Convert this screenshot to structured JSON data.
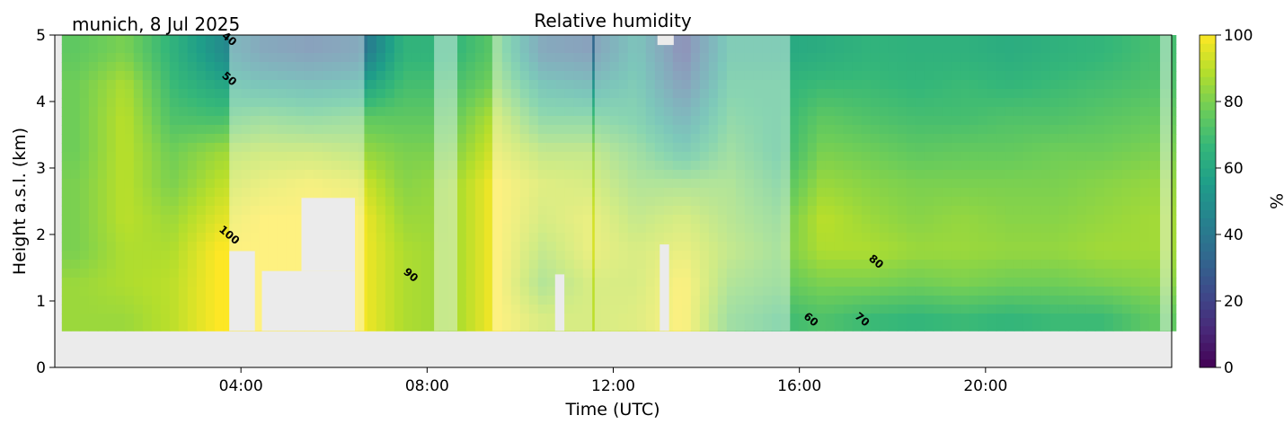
{
  "chart_data": {
    "type": "heatmap",
    "title": "Relative humidity",
    "subtitle": "munich, 8 Jul 2025",
    "xlabel": "Time (UTC)",
    "ylabel": "Height a.s.l. (km)",
    "xlim_hours": [
      0,
      24
    ],
    "ylim": [
      0,
      5
    ],
    "x_ticks": [
      {
        "v": 4,
        "label": "04:00"
      },
      {
        "v": 8,
        "label": "08:00"
      },
      {
        "v": 12,
        "label": "12:00"
      },
      {
        "v": 16,
        "label": "16:00"
      },
      {
        "v": 20,
        "label": "20:00"
      }
    ],
    "y_ticks": [
      {
        "v": 0,
        "label": "0"
      },
      {
        "v": 1,
        "label": "1"
      },
      {
        "v": 2,
        "label": "2"
      },
      {
        "v": 3,
        "label": "3"
      },
      {
        "v": 4,
        "label": "4"
      },
      {
        "v": 5,
        "label": "5"
      }
    ],
    "colorbar": {
      "label": "%",
      "range": [
        0,
        100
      ],
      "ticks": [
        {
          "v": 0,
          "label": "0"
        },
        {
          "v": 20,
          "label": "20"
        },
        {
          "v": 40,
          "label": "40"
        },
        {
          "v": 60,
          "label": "60"
        },
        {
          "v": 80,
          "label": "80"
        },
        {
          "v": 100,
          "label": "100"
        }
      ],
      "colormap": "viridis"
    },
    "data_base_height_km": 0.55,
    "heights_km": [
      0.75,
      1.25,
      1.75,
      2.25,
      2.75,
      3.25,
      3.75,
      4.25,
      4.75
    ],
    "times_hours": [
      0.5,
      1.5,
      2.5,
      3.5,
      4.5,
      5.5,
      6.5,
      7.5,
      8.5,
      9.5,
      10.5,
      11.5,
      12.5,
      13.5,
      14.5,
      15.5,
      16.5,
      17.5,
      18.5,
      19.5,
      20.5,
      21.5,
      22.5,
      23.5
    ],
    "rh_percent": [
      [
        85,
        85,
        80,
        80,
        80,
        78,
        78,
        78,
        75
      ],
      [
        85,
        88,
        88,
        90,
        90,
        90,
        90,
        88,
        80
      ],
      [
        90,
        90,
        88,
        85,
        80,
        78,
        72,
        68,
        65
      ],
      [
        100,
        100,
        100,
        95,
        90,
        85,
        70,
        60,
        50
      ],
      [
        100,
        100,
        100,
        100,
        95,
        88,
        75,
        55,
        35
      ],
      [
        100,
        100,
        100,
        100,
        98,
        88,
        72,
        52,
        30
      ],
      [
        100,
        100,
        100,
        100,
        95,
        85,
        75,
        55,
        35
      ],
      [
        88,
        88,
        88,
        85,
        82,
        80,
        75,
        70,
        65
      ],
      [
        85,
        85,
        85,
        85,
        85,
        80,
        75,
        70,
        65
      ],
      [
        100,
        100,
        100,
        100,
        100,
        95,
        90,
        80,
        75
      ],
      [
        90,
        80,
        85,
        90,
        92,
        85,
        70,
        55,
        35
      ],
      [
        90,
        90,
        95,
        95,
        90,
        85,
        70,
        50,
        30
      ],
      [
        92,
        90,
        90,
        85,
        80,
        75,
        65,
        60,
        55
      ],
      [
        100,
        100,
        95,
        90,
        80,
        60,
        45,
        30,
        20
      ],
      [
        75,
        80,
        85,
        82,
        80,
        75,
        70,
        65,
        60
      ],
      [
        68,
        75,
        78,
        75,
        70,
        65,
        65,
        65,
        60
      ],
      [
        72,
        80,
        88,
        90,
        85,
        80,
        75,
        68,
        62
      ],
      [
        68,
        80,
        88,
        85,
        82,
        78,
        72,
        68,
        65
      ],
      [
        66,
        78,
        85,
        82,
        80,
        75,
        70,
        66,
        64
      ],
      [
        68,
        80,
        85,
        84,
        80,
        76,
        70,
        68,
        64
      ],
      [
        66,
        78,
        84,
        82,
        80,
        76,
        72,
        66,
        62
      ],
      [
        68,
        78,
        84,
        82,
        80,
        78,
        72,
        68,
        64
      ],
      [
        68,
        80,
        86,
        84,
        82,
        78,
        74,
        70,
        66
      ],
      [
        75,
        82,
        86,
        86,
        84,
        80,
        76,
        72,
        70
      ]
    ],
    "low_confidence_intervals_hours": [
      [
        3.75,
        6.65
      ],
      [
        8.15,
        8.65
      ],
      [
        9.4,
        11.55
      ],
      [
        11.6,
        15.8
      ],
      [
        23.75,
        24
      ]
    ],
    "missing_regions": [
      {
        "t": [
          3.75,
          4.3
        ],
        "z": [
          0.55,
          1.75
        ]
      },
      {
        "t": [
          4.45,
          6.45
        ],
        "z": [
          0.55,
          1.45
        ]
      },
      {
        "t": [
          5.3,
          6.45
        ],
        "z": [
          1.45,
          2.55
        ]
      },
      {
        "t": [
          12.95,
          13.3
        ],
        "z": [
          4.85,
          5.0
        ]
      },
      {
        "t": [
          13.0,
          13.2
        ],
        "z": [
          0.55,
          1.85
        ]
      },
      {
        "t": [
          10.75,
          10.95
        ],
        "z": [
          0.55,
          1.4
        ]
      }
    ],
    "contour_labels": [
      {
        "text": "40",
        "t": 3.7,
        "z": 4.9
      },
      {
        "text": "50",
        "t": 3.7,
        "z": 4.3
      },
      {
        "text": "100",
        "t": 3.7,
        "z": 1.95
      },
      {
        "text": "90",
        "t": 7.6,
        "z": 1.35
      },
      {
        "text": "80",
        "t": 17.6,
        "z": 1.55
      },
      {
        "text": "60",
        "t": 16.2,
        "z": 0.68
      },
      {
        "text": "70",
        "t": 17.3,
        "z": 0.68
      }
    ]
  }
}
